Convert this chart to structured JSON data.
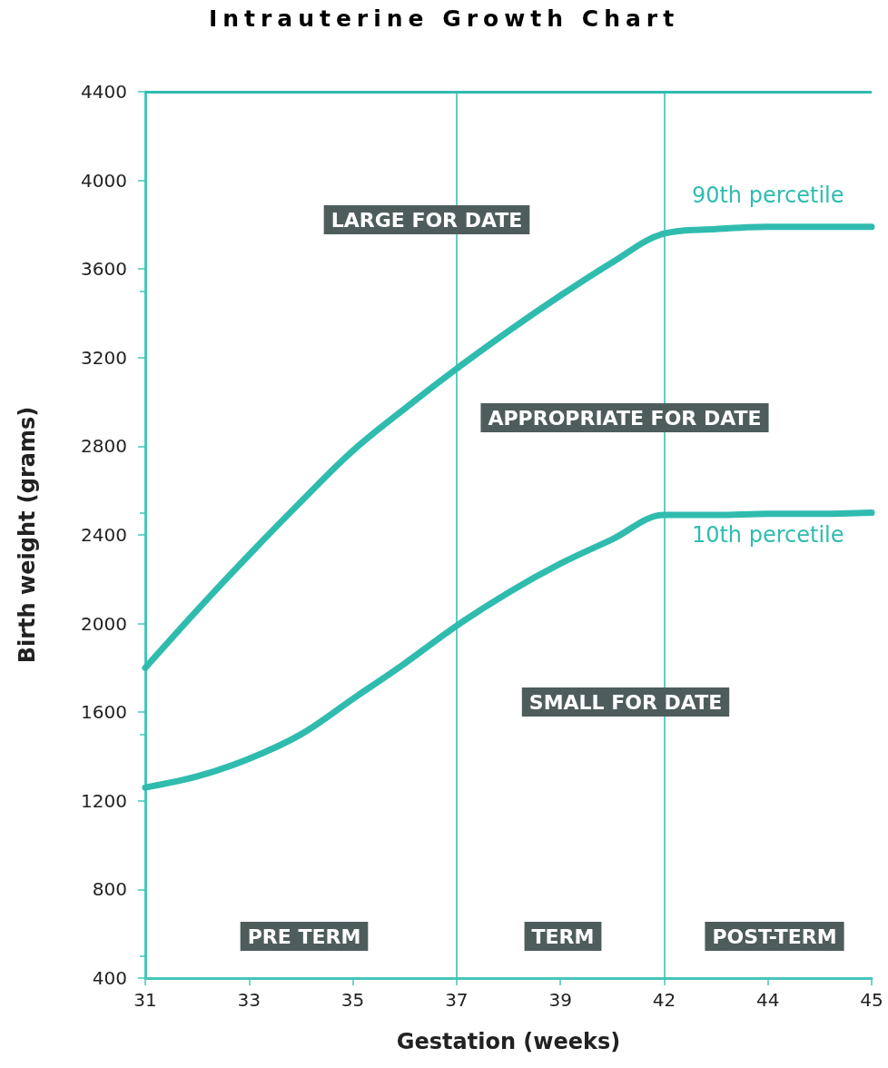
{
  "chart_data": {
    "type": "line",
    "title": "Intrauterine Growth Chart",
    "xlabel": "Gestation (weeks)",
    "ylabel": "Birth weight (grams)",
    "categories": [
      "31",
      null,
      "33",
      null,
      "35",
      null,
      "37",
      null,
      "39",
      null,
      "42",
      null,
      "44",
      null,
      "45"
    ],
    "series": [
      {
        "name": "90th percetile",
        "color": "#2fbcaf",
        "values": [
          1800,
          2060,
          2310,
          2550,
          2780,
          2970,
          3150,
          3320,
          3480,
          3630,
          3760,
          3780,
          3790,
          3790,
          3790
        ]
      },
      {
        "name": "10th percetile",
        "color": "#2fbcaf",
        "values": [
          1260,
          1310,
          1390,
          1500,
          1660,
          1820,
          1990,
          2140,
          2270,
          2380,
          2490,
          2490,
          2495,
          2495,
          2500
        ]
      }
    ],
    "ylim": [
      400,
      4400
    ],
    "yticks": [
      400,
      800,
      1200,
      1600,
      2000,
      2400,
      2800,
      3200,
      3600,
      4000,
      4400
    ],
    "ref_lines": [
      {
        "axis": "x",
        "value": "37",
        "color": "#2fbcaf"
      },
      {
        "axis": "x",
        "value": "42",
        "color": "#2fbcaf"
      },
      {
        "axis": "y",
        "value": 4400,
        "color": "#2fbcaf"
      }
    ],
    "annotations": [
      "LARGE FOR DATE",
      "APPROPRIATE FOR DATE",
      "SMALL FOR DATE",
      "PRE TERM",
      "TERM",
      "POST-TERM"
    ],
    "grid": false,
    "legend": false,
    "marker": "none",
    "line_style": "solid"
  }
}
